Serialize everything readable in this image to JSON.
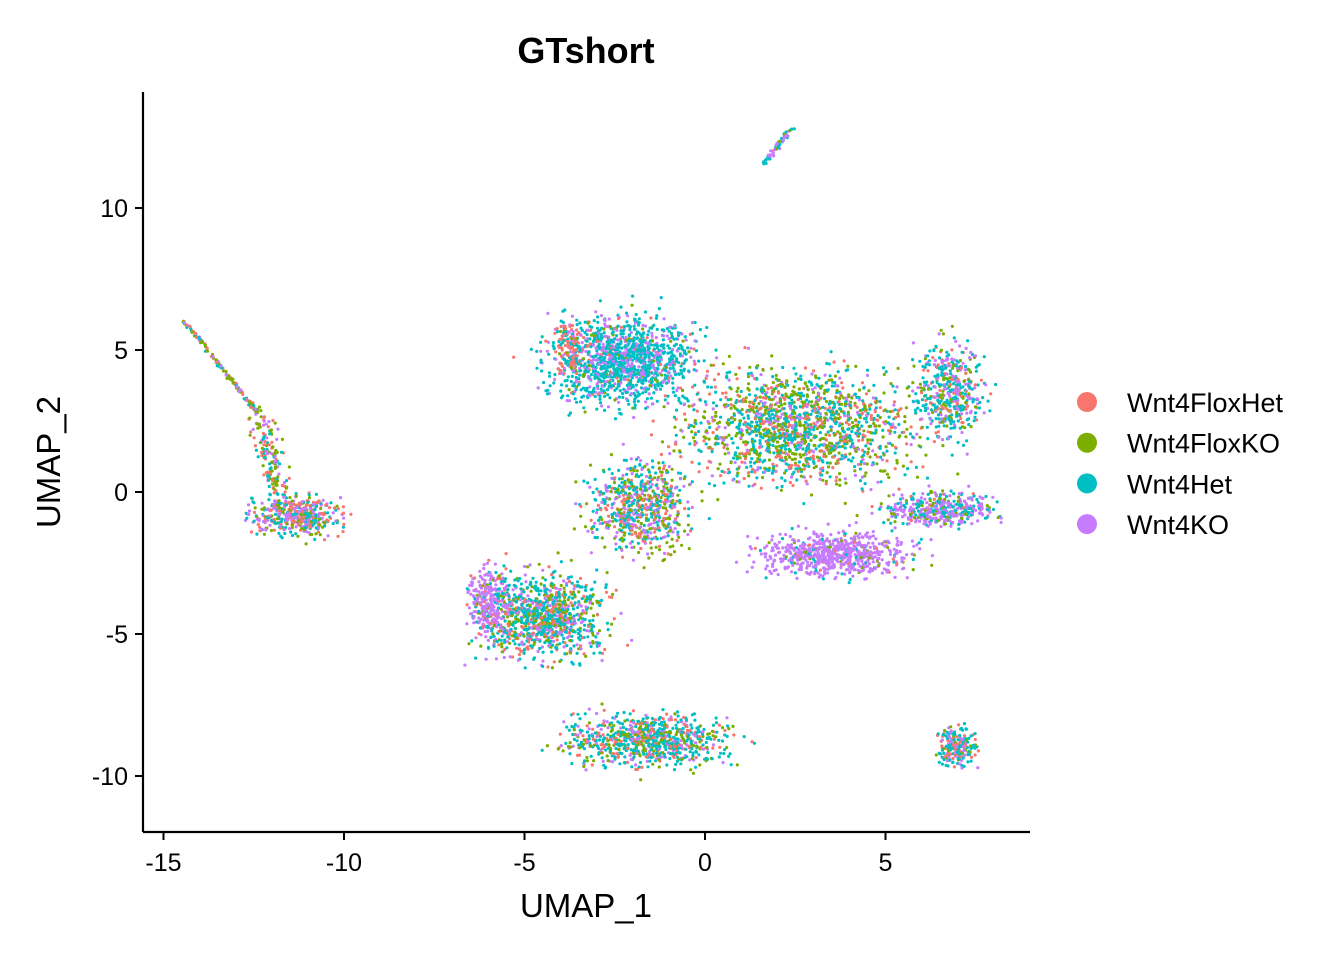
{
  "chart_data": {
    "type": "scatter",
    "title": "GTshort",
    "xlabel": "UMAP_1",
    "ylabel": "UMAP_2",
    "xlim": [
      -15.57,
      9.0
    ],
    "ylim": [
      -11.97,
      14.08
    ],
    "xticks": [
      -15,
      -10,
      -5,
      0,
      5
    ],
    "yticks": [
      -10,
      -5,
      0,
      5,
      10
    ],
    "xtick_labels": [
      "-15",
      "-10",
      "-5",
      "0",
      "5"
    ],
    "ytick_labels": [
      "-10",
      "-5",
      "0",
      "5",
      "10"
    ],
    "grid": false,
    "legend_position": "right",
    "series": [
      {
        "name": "Wnt4FloxHet",
        "color": "#F8766D"
      },
      {
        "name": "Wnt4FloxKO",
        "color": "#7CAE00"
      },
      {
        "name": "Wnt4Het",
        "color": "#00BFC4"
      },
      {
        "name": "Wnt4KO",
        "color": "#C77CFF"
      }
    ],
    "note": "Thousands of cells; represented as approximate clusters (center, spread, count, group mix)",
    "clusters": [
      {
        "shape": "line",
        "from": [
          1.6,
          11.5
        ],
        "to": [
          2.4,
          12.8
        ],
        "width": 0.08,
        "n": 60,
        "mix": [
          0.05,
          0.1,
          0.45,
          0.4
        ]
      },
      {
        "shape": "line",
        "from": [
          -14.4,
          6.0
        ],
        "to": [
          -12.4,
          2.8
        ],
        "width": 0.06,
        "n": 120,
        "mix": [
          0.2,
          0.3,
          0.25,
          0.25
        ]
      },
      {
        "shape": "line",
        "from": [
          -12.4,
          2.8
        ],
        "to": [
          -11.8,
          0.0
        ],
        "width": 0.35,
        "n": 150,
        "mix": [
          0.3,
          0.35,
          0.2,
          0.15
        ]
      },
      {
        "shape": "blob",
        "center": [
          -11.3,
          -0.8
        ],
        "spread": [
          0.75,
          0.45
        ],
        "n": 450,
        "mix": [
          0.25,
          0.2,
          0.3,
          0.25
        ]
      },
      {
        "shape": "blob",
        "center": [
          -2.2,
          4.6
        ],
        "spread": [
          1.3,
          1.0
        ],
        "n": 1300,
        "mix": [
          0.04,
          0.06,
          0.65,
          0.25
        ]
      },
      {
        "shape": "blob",
        "center": [
          -3.7,
          5.0
        ],
        "spread": [
          0.3,
          0.6
        ],
        "n": 120,
        "mix": [
          0.75,
          0.1,
          0.1,
          0.05
        ]
      },
      {
        "shape": "blob",
        "center": [
          2.6,
          2.3
        ],
        "spread": [
          2.0,
          1.3
        ],
        "n": 1600,
        "mix": [
          0.2,
          0.3,
          0.35,
          0.15
        ]
      },
      {
        "shape": "blob",
        "center": [
          6.8,
          3.6
        ],
        "spread": [
          0.6,
          1.1
        ],
        "n": 450,
        "mix": [
          0.1,
          0.15,
          0.45,
          0.3
        ]
      },
      {
        "shape": "blob",
        "center": [
          3.6,
          -2.2
        ],
        "spread": [
          1.3,
          0.5
        ],
        "n": 700,
        "mix": [
          0.03,
          0.05,
          0.07,
          0.85
        ]
      },
      {
        "shape": "blob",
        "center": [
          6.5,
          -0.6
        ],
        "spread": [
          1.0,
          0.4
        ],
        "n": 400,
        "mix": [
          0.05,
          0.1,
          0.25,
          0.6
        ]
      },
      {
        "shape": "blob",
        "center": [
          -1.8,
          -0.5
        ],
        "spread": [
          0.9,
          1.1
        ],
        "n": 700,
        "mix": [
          0.15,
          0.3,
          0.3,
          0.25
        ]
      },
      {
        "shape": "blob",
        "center": [
          -4.5,
          -4.3
        ],
        "spread": [
          1.1,
          1.0
        ],
        "n": 1000,
        "mix": [
          0.15,
          0.2,
          0.45,
          0.2
        ]
      },
      {
        "shape": "blob",
        "center": [
          -6.0,
          -3.9
        ],
        "spread": [
          0.35,
          0.8
        ],
        "n": 250,
        "mix": [
          0.1,
          0.05,
          0.1,
          0.75
        ]
      },
      {
        "shape": "blob",
        "center": [
          -1.6,
          -8.7
        ],
        "spread": [
          1.4,
          0.6
        ],
        "n": 800,
        "mix": [
          0.2,
          0.2,
          0.45,
          0.15
        ]
      },
      {
        "shape": "blob",
        "center": [
          7.0,
          -9.0
        ],
        "spread": [
          0.35,
          0.45
        ],
        "n": 200,
        "mix": [
          0.2,
          0.1,
          0.5,
          0.2
        ]
      }
    ]
  }
}
